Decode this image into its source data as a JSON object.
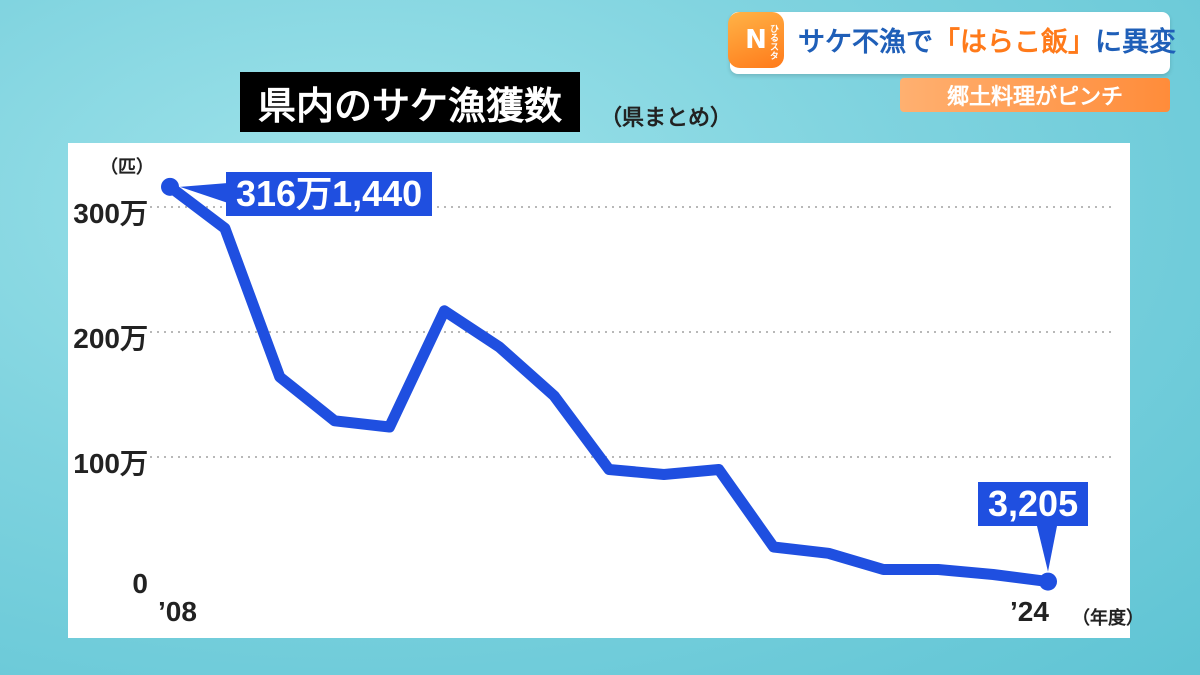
{
  "banner": {
    "logo_letter": "N",
    "logo_small": "ひるスタ",
    "headline_part1": "サケ不漁で",
    "headline_accent": "「はらこ飯」",
    "headline_part2": "に異変",
    "subline": "郷土料理がピンチ"
  },
  "chart_data": {
    "type": "line",
    "title": "県内のサケ漁獲数",
    "subtitle": "（県まとめ）",
    "ylabel": "（匹）",
    "xlabel": "（年度）",
    "x": [
      2008,
      2009,
      2010,
      2011,
      2012,
      2013,
      2014,
      2015,
      2016,
      2017,
      2018,
      2019,
      2020,
      2021,
      2022,
      2023,
      2024
    ],
    "x_tick_labels": [
      "’08",
      "’24"
    ],
    "y_tick_labels": [
      "0",
      "100万",
      "200万",
      "300万"
    ],
    "y_ticks": [
      0,
      1000000,
      2000000,
      3000000
    ],
    "ylim": [
      0,
      3500000
    ],
    "series": [
      {
        "values": [
          3161440,
          2830000,
          1640000,
          1290000,
          1240000,
          2170000,
          1880000,
          1490000,
          900000,
          860000,
          900000,
          280000,
          230000,
          100000,
          100000,
          60000,
          3205
        ],
        "color": "#1f4fe0"
      }
    ],
    "annotations": [
      {
        "index": 0,
        "text": "316万1,440"
      },
      {
        "index": 16,
        "text": "3,205"
      }
    ],
    "grid": "dotted-horizontal"
  }
}
